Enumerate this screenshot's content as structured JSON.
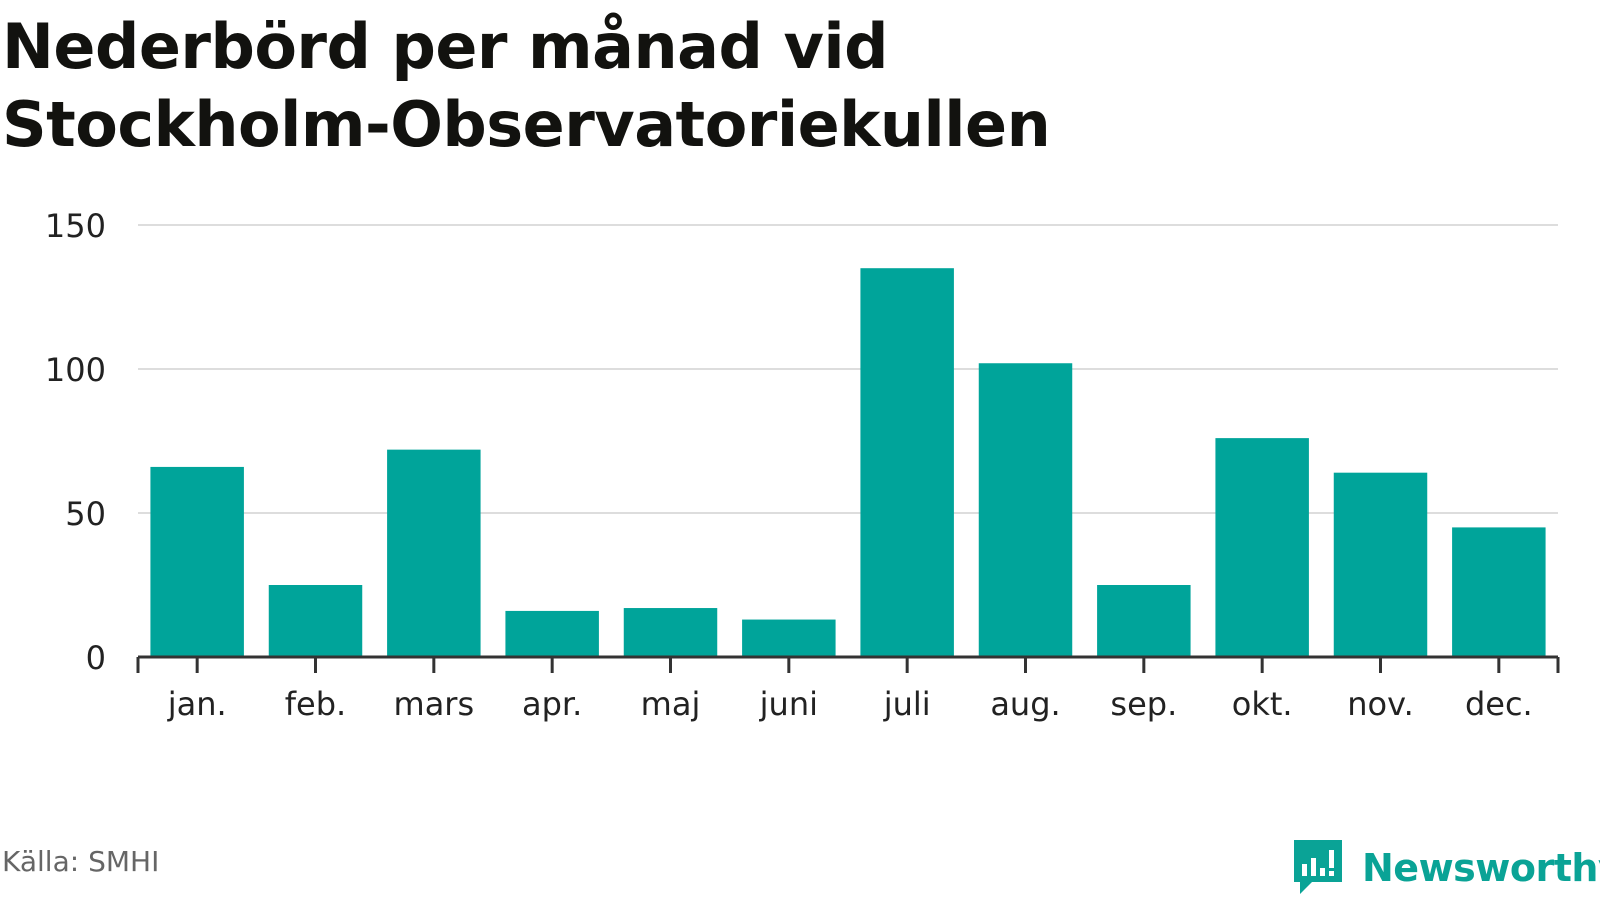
{
  "title": {
    "line1": "Nederbörd per månad vid",
    "line2": "Stockholm-Observatoriekullen"
  },
  "source": "Källa: SMHI",
  "brand": {
    "name": "Newsworthy",
    "icon": "bar-chart-speech-bubble-icon",
    "color": "#0aa396"
  },
  "colors": {
    "bar": "#00a49a",
    "grid": "#dddddd",
    "axis": "#333333"
  },
  "chart_data": {
    "type": "bar",
    "title": "Nederbörd per månad vid Stockholm-Observatoriekullen",
    "categories": [
      "jan.",
      "feb.",
      "mars",
      "apr.",
      "maj",
      "juni",
      "juli",
      "aug.",
      "sep.",
      "okt.",
      "nov.",
      "dec."
    ],
    "values": [
      66,
      25,
      72,
      16,
      17,
      13,
      135,
      102,
      25,
      76,
      64,
      45
    ],
    "ylim": [
      0,
      150
    ],
    "yticks": [
      0,
      50,
      100,
      150
    ],
    "xlabel": "",
    "ylabel": "",
    "grid": true,
    "legend": "none"
  }
}
